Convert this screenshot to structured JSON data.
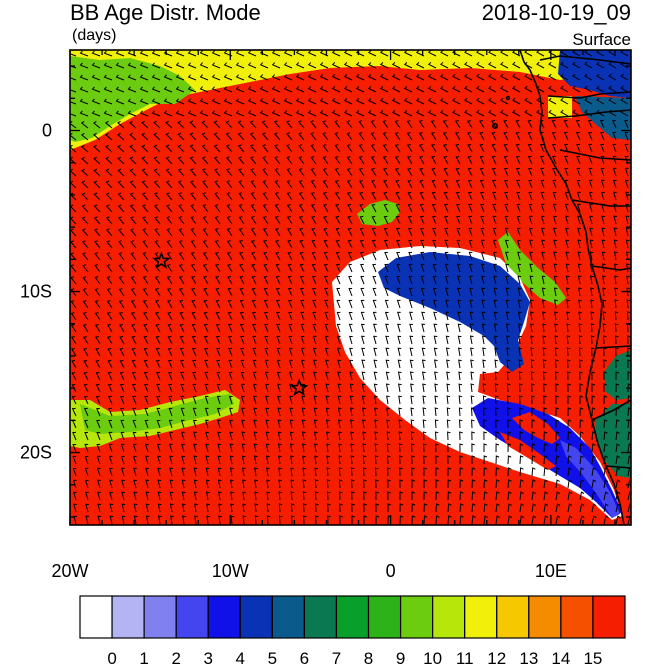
{
  "header": {
    "title": "BB Age Distr. Mode",
    "units": "(days)",
    "datetime": "2018-10-19_09",
    "level": "Surface"
  },
  "axes": {
    "lon_ticks": [
      {
        "label": "20W",
        "value": -20
      },
      {
        "label": "10W",
        "value": -10
      },
      {
        "label": "0",
        "value": 0
      },
      {
        "label": "10E",
        "value": 10
      }
    ],
    "lat_ticks": [
      {
        "label": "0",
        "value": 0
      },
      {
        "label": "10S",
        "value": -10
      },
      {
        "label": "20S",
        "value": -20
      }
    ],
    "lon_range": [
      -20,
      15
    ],
    "lat_range": [
      -24.5,
      5
    ]
  },
  "colorbar": {
    "labels": [
      "0",
      "1",
      "2",
      "3",
      "4",
      "5",
      "6",
      "7",
      "8",
      "9",
      "10",
      "11",
      "12",
      "13",
      "14",
      "15"
    ],
    "colors": [
      "#ffffff",
      "#b4b4f5",
      "#8080ef",
      "#4545f0",
      "#1010e8",
      "#0a32b4",
      "#0a5a8c",
      "#0a7850",
      "#08a02a",
      "#2db21a",
      "#6ccc10",
      "#b6e60a",
      "#f0f00a",
      "#f5c800",
      "#f58c00",
      "#f55000",
      "#f51e00"
    ]
  },
  "markers": [
    {
      "name": "star",
      "lon": -14.3,
      "lat": -8.1
    },
    {
      "name": "star",
      "lon": -5.7,
      "lat": -16.0
    }
  ],
  "colors": {
    "background_field": "#f51e00",
    "wind_barb": "#000000",
    "coastline": "#000000"
  }
}
